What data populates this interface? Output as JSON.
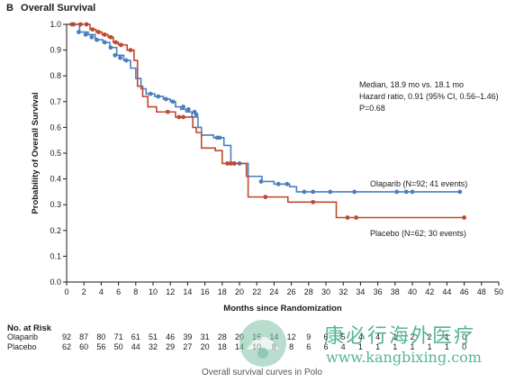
{
  "panel": {
    "letter": "B",
    "title": "Overall Survival"
  },
  "caption": "Overall survival curves in Polo",
  "watermark": {
    "chinese": "康必行海外医疗",
    "url": "www.kangbixing.com"
  },
  "colors": {
    "olaparib": "#4a7fbd",
    "placebo": "#c0482f",
    "axis": "#1a1a1a"
  },
  "chart_data": {
    "type": "line",
    "title": "Overall Survival",
    "xlabel": "Months since Randomization",
    "ylabel": "Probability of Overall Survival",
    "xlim": [
      0,
      50
    ],
    "ylim": [
      0,
      1.0
    ],
    "x_ticks": [
      0,
      2,
      4,
      6,
      8,
      10,
      12,
      14,
      16,
      18,
      20,
      22,
      24,
      26,
      28,
      30,
      32,
      34,
      36,
      38,
      40,
      42,
      44,
      46,
      48,
      50
    ],
    "y_ticks": [
      0.0,
      0.1,
      0.2,
      0.3,
      0.4,
      0.5,
      0.6,
      0.7,
      0.8,
      0.9,
      1.0
    ],
    "grid": false,
    "annotation_lines": [
      "Median, 18.9 mo vs. 18.1 mo",
      "Hazard ratio, 0.91 (95% CI, 0.56–1.46)",
      "P=0.68"
    ],
    "series": [
      {
        "name": "Olaparib",
        "label": "Olaparib (N=92; 41 events)",
        "step_points": [
          [
            0,
            1.0
          ],
          [
            1.5,
            0.97
          ],
          [
            2.5,
            0.96
          ],
          [
            3.3,
            0.94
          ],
          [
            4.2,
            0.93
          ],
          [
            5,
            0.91
          ],
          [
            5.8,
            0.88
          ],
          [
            6.6,
            0.86
          ],
          [
            7.4,
            0.83
          ],
          [
            8,
            0.79
          ],
          [
            8.6,
            0.75
          ],
          [
            9.2,
            0.73
          ],
          [
            10.2,
            0.72
          ],
          [
            11.2,
            0.71
          ],
          [
            12,
            0.7
          ],
          [
            12.6,
            0.68
          ],
          [
            13.2,
            0.67
          ],
          [
            13.8,
            0.66
          ],
          [
            14.5,
            0.64
          ],
          [
            15.2,
            0.6
          ],
          [
            15.6,
            0.57
          ],
          [
            16.3,
            0.57
          ],
          [
            17,
            0.56
          ],
          [
            18.2,
            0.53
          ],
          [
            19,
            0.46
          ],
          [
            21,
            0.41
          ],
          [
            22.6,
            0.39
          ],
          [
            24,
            0.38
          ],
          [
            25.8,
            0.37
          ],
          [
            26.6,
            0.35
          ],
          [
            45.5,
            0.35
          ]
        ],
        "censor_points": [
          [
            0.6,
            1.0
          ],
          [
            1.4,
            0.97
          ],
          [
            2.2,
            0.96
          ],
          [
            2.9,
            0.95
          ],
          [
            3.5,
            0.94
          ],
          [
            4.4,
            0.93
          ],
          [
            5.1,
            0.91
          ],
          [
            5.6,
            0.88
          ],
          [
            6.2,
            0.87
          ],
          [
            6.9,
            0.86
          ],
          [
            9.7,
            0.73
          ],
          [
            10.6,
            0.72
          ],
          [
            11.5,
            0.71
          ],
          [
            12.3,
            0.7
          ],
          [
            13.5,
            0.68
          ],
          [
            14.1,
            0.67
          ],
          [
            14.8,
            0.66
          ],
          [
            15.0,
            0.65
          ],
          [
            17.4,
            0.56
          ],
          [
            17.7,
            0.56
          ],
          [
            19.4,
            0.46
          ],
          [
            20.0,
            0.46
          ],
          [
            22.5,
            0.39
          ],
          [
            24.5,
            0.38
          ],
          [
            25.5,
            0.38
          ],
          [
            27.5,
            0.35
          ],
          [
            28.5,
            0.35
          ],
          [
            30.5,
            0.35
          ],
          [
            33.3,
            0.35
          ],
          [
            38.2,
            0.35
          ],
          [
            39.3,
            0.35
          ],
          [
            40.0,
            0.35
          ],
          [
            45.5,
            0.35
          ]
        ]
      },
      {
        "name": "Placebo",
        "label": "Placebo (N=62; 30 events)",
        "step_points": [
          [
            0,
            1.0
          ],
          [
            2.7,
            0.98
          ],
          [
            3.4,
            0.97
          ],
          [
            4.1,
            0.96
          ],
          [
            4.8,
            0.95
          ],
          [
            5.4,
            0.93
          ],
          [
            6,
            0.92
          ],
          [
            7,
            0.9
          ],
          [
            7.8,
            0.86
          ],
          [
            8.2,
            0.76
          ],
          [
            8.8,
            0.72
          ],
          [
            9.4,
            0.68
          ],
          [
            10.4,
            0.66
          ],
          [
            12.6,
            0.64
          ],
          [
            14.6,
            0.6
          ],
          [
            15,
            0.58
          ],
          [
            15.6,
            0.52
          ],
          [
            16.4,
            0.52
          ],
          [
            17.2,
            0.51
          ],
          [
            18,
            0.46
          ],
          [
            20.6,
            0.46
          ],
          [
            20.8,
            0.41
          ],
          [
            21,
            0.33
          ],
          [
            25.2,
            0.33
          ],
          [
            25.6,
            0.31
          ],
          [
            30.8,
            0.31
          ],
          [
            31.2,
            0.25
          ],
          [
            46,
            0.25
          ]
        ],
        "censor_points": [
          [
            0.8,
            1.0
          ],
          [
            1.6,
            1.0
          ],
          [
            2.3,
            1.0
          ],
          [
            3.0,
            0.98
          ],
          [
            3.7,
            0.97
          ],
          [
            4.4,
            0.96
          ],
          [
            5.1,
            0.95
          ],
          [
            5.7,
            0.93
          ],
          [
            6.3,
            0.92
          ],
          [
            7.4,
            0.9
          ],
          [
            11.7,
            0.66
          ],
          [
            13.0,
            0.64
          ],
          [
            13.5,
            0.64
          ],
          [
            18.6,
            0.46
          ],
          [
            19.0,
            0.46
          ],
          [
            19.4,
            0.46
          ],
          [
            23.0,
            0.33
          ],
          [
            28.5,
            0.31
          ],
          [
            32.5,
            0.25
          ],
          [
            33.5,
            0.25
          ],
          [
            46.0,
            0.25
          ]
        ]
      }
    ],
    "risk_table": {
      "title": "No. at Risk",
      "times": [
        0,
        2,
        4,
        6,
        8,
        10,
        12,
        14,
        16,
        18,
        20,
        22,
        24,
        26,
        28,
        30,
        32,
        34,
        36,
        38,
        40,
        42,
        44,
        46
      ],
      "rows": [
        {
          "label": "Olaparib",
          "values": [
            "92",
            "87",
            "80",
            "71",
            "61",
            "51",
            "46",
            "39",
            "31",
            "28",
            "20",
            "16",
            "14",
            "12",
            "9",
            "6",
            "5",
            "4",
            "4",
            "1",
            "2",
            "2",
            "1",
            "0"
          ]
        },
        {
          "label": "Placebo",
          "values": [
            "62",
            "60",
            "56",
            "50",
            "44",
            "32",
            "29",
            "27",
            "20",
            "18",
            "14",
            "10",
            "8",
            "8",
            "6",
            "6",
            "4",
            "1",
            "1",
            "1",
            "1",
            "1",
            "1",
            "0"
          ]
        }
      ]
    }
  }
}
